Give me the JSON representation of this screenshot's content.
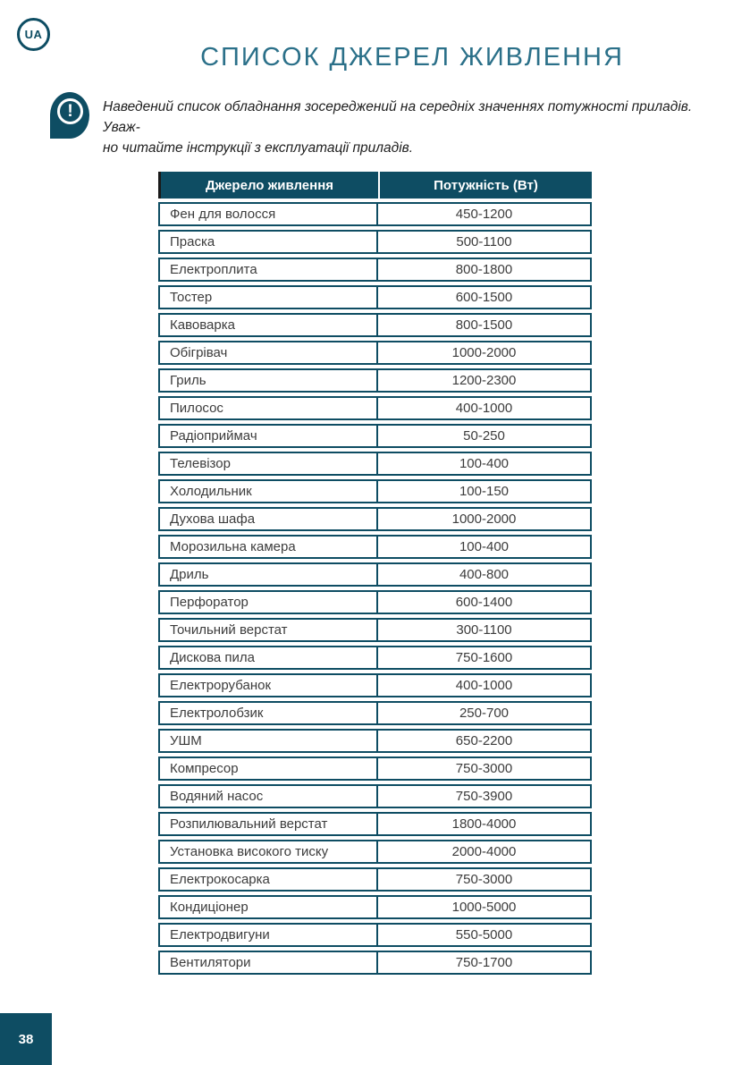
{
  "page": {
    "logo": "UA",
    "title": "СПИСОК ДЖЕРЕЛ ЖИВЛЕННЯ",
    "page_number": "38"
  },
  "colors": {
    "teal_dark": "#0e4d63",
    "title_teal": "#2b7089"
  },
  "note": {
    "icon": "exclamation-icon",
    "exclamation": "!",
    "lines": [
      "Наведений список обладнання зосереджений на середніх значеннях потужності приладів. Уваж-",
      "но читайте інструкції з експлуатації приладів."
    ]
  },
  "table": {
    "headers": [
      "Джерело живлення",
      "Потужність (Вт)"
    ],
    "rows": [
      {
        "source": "Фен для волосся",
        "power": "450-1200"
      },
      {
        "source": "Праска",
        "power": "500-1100"
      },
      {
        "source": "Електроплита",
        "power": "800-1800"
      },
      {
        "source": "Тостер",
        "power": "600-1500"
      },
      {
        "source": "Кавоварка",
        "power": "800-1500"
      },
      {
        "source": "Обігрівач",
        "power": "1000-2000"
      },
      {
        "source": "Гриль",
        "power": "1200-2300"
      },
      {
        "source": "Пилосос",
        "power": "400-1000"
      },
      {
        "source": "Радіоприймач",
        "power": "50-250"
      },
      {
        "source": "Телевізор",
        "power": "100-400"
      },
      {
        "source": "Холодильник",
        "power": "100-150"
      },
      {
        "source": "Духова шафа",
        "power": "1000-2000"
      },
      {
        "source": "Морозильна камера",
        "power": "100-400"
      },
      {
        "source": "Дриль",
        "power": "400-800"
      },
      {
        "source": "Перфоратор",
        "power": "600-1400"
      },
      {
        "source": "Точильний верстат",
        "power": "300-1100"
      },
      {
        "source": "Дискова пила",
        "power": "750-1600"
      },
      {
        "source": "Електрорубанок",
        "power": "400-1000"
      },
      {
        "source": "Електролобзик",
        "power": "250-700"
      },
      {
        "source": "УШМ",
        "power": "650-2200"
      },
      {
        "source": "Компресор",
        "power": "750-3000"
      },
      {
        "source": "Водяний насос",
        "power": "750-3900"
      },
      {
        "source": "Розпилювальний верстат",
        "power": "1800-4000"
      },
      {
        "source": "Установка високого тиску",
        "power": "2000-4000"
      },
      {
        "source": "Електрокосарка",
        "power": "750-3000"
      },
      {
        "source": "Кондиціонер",
        "power": "1000-5000"
      },
      {
        "source": "Електродвигуни",
        "power": "550-5000"
      },
      {
        "source": "Вентилятори",
        "power": "750-1700"
      }
    ]
  }
}
